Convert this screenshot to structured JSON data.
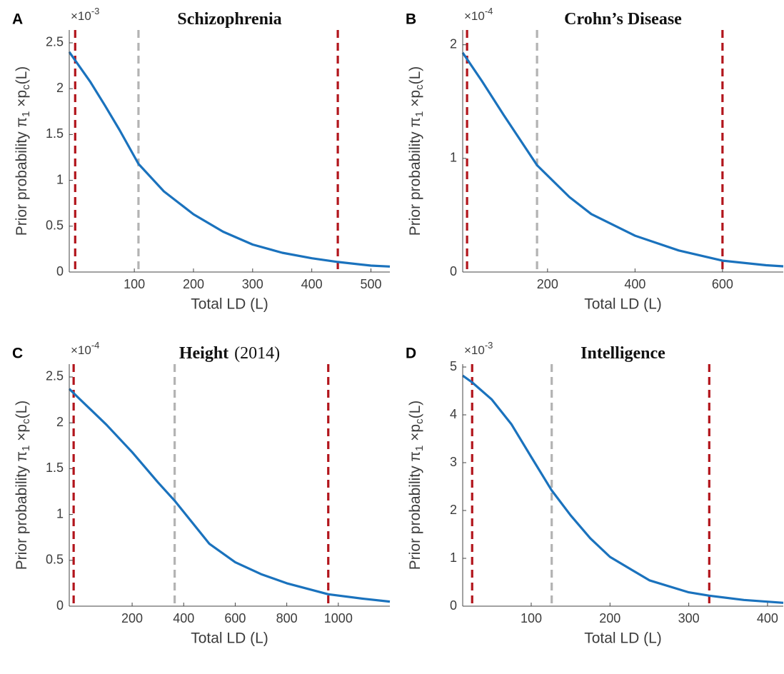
{
  "chart_data": [
    {
      "type": "line",
      "panel_label": "A",
      "title": "Schizophrenia",
      "multiplier": {
        "base": "×10",
        "exponent": "-3"
      },
      "xlabel": "Total LD (L)",
      "ylabel": [
        {
          "text": "Prior probability  π"
        },
        {
          "sub": "1"
        },
        {
          "text": " ×p"
        },
        {
          "sub": "c"
        },
        {
          "text": "(L)"
        }
      ],
      "x": [
        -10,
        25,
        50,
        75,
        107,
        150,
        200,
        250,
        300,
        350,
        400,
        444,
        500,
        532
      ],
      "values": [
        2.4,
        2.08,
        1.82,
        1.55,
        1.18,
        0.88,
        0.63,
        0.44,
        0.3,
        0.21,
        0.15,
        0.11,
        0.07,
        0.06
      ],
      "color": "#1a72bd",
      "vlines": [
        {
          "x": 0,
          "color": "#b2151c"
        },
        {
          "x": 107,
          "color": "#b3b3b3"
        },
        {
          "x": 444,
          "color": "#b2151c"
        }
      ],
      "xlim": [
        -10,
        532
      ],
      "xticks": [
        100,
        200,
        300,
        400,
        500
      ],
      "ylim": [
        0,
        2.64
      ],
      "yticks": [
        0,
        0.5,
        1,
        1.5,
        2,
        2.5
      ],
      "grid": false
    },
    {
      "type": "line",
      "panel_label": "B",
      "title": "Crohn’s Disease",
      "multiplier": {
        "base": "×10",
        "exponent": "-4"
      },
      "xlabel": "Total LD (L)",
      "ylabel": [
        {
          "text": "Prior probability  π"
        },
        {
          "sub": "1"
        },
        {
          "text": " ×p"
        },
        {
          "sub": "c"
        },
        {
          "text": "(L)"
        }
      ],
      "x": [
        6,
        50,
        100,
        176,
        250,
        300,
        400,
        500,
        600,
        700,
        739
      ],
      "values": [
        1.93,
        1.68,
        1.38,
        0.94,
        0.66,
        0.51,
        0.32,
        0.19,
        0.1,
        0.06,
        0.05
      ],
      "color": "#1a72bd",
      "vlines": [
        {
          "x": 16,
          "color": "#b2151c"
        },
        {
          "x": 176,
          "color": "#b3b3b3"
        },
        {
          "x": 600,
          "color": "#b2151c"
        }
      ],
      "xlim": [
        6,
        739
      ],
      "xticks": [
        200,
        400,
        600
      ],
      "ylim": [
        0,
        2.13
      ],
      "yticks": [
        0,
        1,
        2
      ],
      "grid": false
    },
    {
      "type": "line",
      "panel_label": "C",
      "title": "Height",
      "subtitle": "(2014)",
      "multiplier": {
        "base": "×10",
        "exponent": "-4"
      },
      "xlabel": "Total LD (L)",
      "ylabel": [
        {
          "text": "Prior probability  π"
        },
        {
          "sub": "1"
        },
        {
          "text": " ×p"
        },
        {
          "sub": "c"
        },
        {
          "text": "(L)"
        }
      ],
      "x": [
        -44,
        0,
        100,
        200,
        300,
        365,
        500,
        600,
        700,
        800,
        961,
        1100,
        1200
      ],
      "values": [
        2.37,
        2.25,
        1.98,
        1.68,
        1.35,
        1.15,
        0.68,
        0.48,
        0.35,
        0.25,
        0.13,
        0.08,
        0.05
      ],
      "color": "#1a72bd",
      "vlines": [
        {
          "x": -27,
          "color": "#b2151c"
        },
        {
          "x": 365,
          "color": "#b3b3b3"
        },
        {
          "x": 961,
          "color": "#b2151c"
        }
      ],
      "xlim": [
        -44,
        1200
      ],
      "xticks": [
        200,
        400,
        600,
        800,
        1000
      ],
      "ylim": [
        0,
        2.64
      ],
      "yticks": [
        0,
        0.5,
        1,
        1.5,
        2,
        2.5
      ],
      "grid": false
    },
    {
      "type": "line",
      "panel_label": "D",
      "title": "Intelligence",
      "multiplier": {
        "base": "×10",
        "exponent": "-3"
      },
      "xlabel": "Total LD (L)",
      "ylabel": [
        {
          "text": "Prior probability  π"
        },
        {
          "sub": "1"
        },
        {
          "text": " ×p"
        },
        {
          "sub": "c"
        },
        {
          "text": "(L)"
        }
      ],
      "x": [
        13,
        25,
        50,
        75,
        100,
        126,
        150,
        175,
        200,
        250,
        300,
        326,
        370,
        420
      ],
      "values": [
        4.82,
        4.68,
        4.32,
        3.8,
        3.12,
        2.42,
        1.9,
        1.42,
        1.03,
        0.54,
        0.29,
        0.22,
        0.13,
        0.07
      ],
      "color": "#1a72bd",
      "vlines": [
        {
          "x": 25,
          "color": "#b2151c"
        },
        {
          "x": 126,
          "color": "#b3b3b3"
        },
        {
          "x": 326,
          "color": "#b2151c"
        }
      ],
      "xlim": [
        13,
        420
      ],
      "xticks": [
        100,
        200,
        300,
        400
      ],
      "ylim": [
        0,
        5.06
      ],
      "yticks": [
        0,
        1,
        2,
        3,
        4,
        5
      ],
      "grid": false
    }
  ]
}
